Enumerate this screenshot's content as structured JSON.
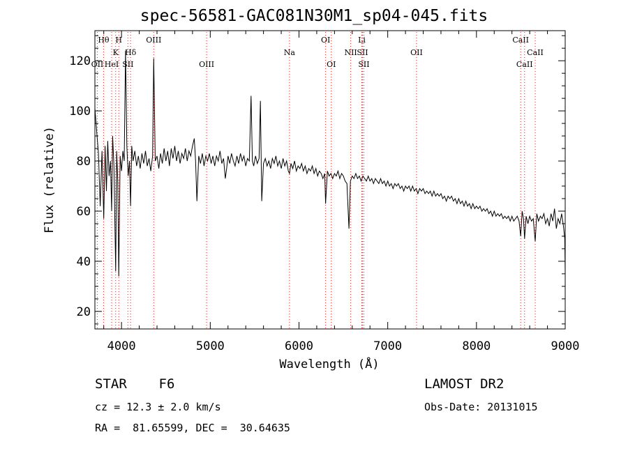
{
  "title": "spec-56581-GAC081N30M1_sp04-045.fits",
  "info": {
    "object": "STAR    F6",
    "survey": "LAMOST DR2",
    "redshift": "cz = 12.3 ± 2.0 km/s",
    "obs_date": "Obs-Date: 20131015",
    "coords": "RA =  81.65599, DEC =  30.64635"
  },
  "chart_data": {
    "type": "line",
    "title": "spec-56581-GAC081N30M1_sp04-045.fits",
    "xlabel": "Wavelength (Å)",
    "ylabel": "Flux (relative)",
    "xlim": [
      3700,
      9000
    ],
    "ylim": [
      13,
      132
    ],
    "xticks": [
      4000,
      5000,
      6000,
      7000,
      8000,
      9000
    ],
    "yticks": [
      20,
      40,
      60,
      80,
      100,
      120
    ],
    "grid": false,
    "line_color": "#000000",
    "marker_color": "#cc2222",
    "lines": [
      {
        "label": "OII",
        "wave": 3727,
        "row": 2
      },
      {
        "label": "Hθ",
        "wave": 3798,
        "row": 0
      },
      {
        "label": "K",
        "wave": 3934,
        "row": 1
      },
      {
        "label": "H",
        "wave": 3969,
        "row": 0
      },
      {
        "label": "HeI",
        "wave": 3889,
        "row": 2
      },
      {
        "label": "SII",
        "wave": 4072,
        "row": 2
      },
      {
        "label": "Hδ",
        "wave": 4102,
        "row": 1
      },
      {
        "label": "OIII",
        "wave": 4363,
        "row": 0
      },
      {
        "label": "OIII",
        "wave": 4959,
        "row": 2
      },
      {
        "label": "Na",
        "wave": 5893,
        "row": 1
      },
      {
        "label": "OI",
        "wave": 6300,
        "row": 0
      },
      {
        "label": "OI",
        "wave": 6364,
        "row": 2
      },
      {
        "label": "NII",
        "wave": 6583,
        "row": 1
      },
      {
        "label": "Li",
        "wave": 6708,
        "row": 0
      },
      {
        "label": "SII",
        "wave": 6716,
        "row": 1
      },
      {
        "label": "SII",
        "wave": 6731,
        "row": 2
      },
      {
        "label": "OII",
        "wave": 7325,
        "row": 1
      },
      {
        "label": "CaII",
        "wave": 8498,
        "row": 0
      },
      {
        "label": "CaII",
        "wave": 8542,
        "row": 2
      },
      {
        "label": "CaII",
        "wave": 8662,
        "row": 1
      }
    ],
    "series": [
      {
        "points": [
          [
            3700,
            101
          ],
          [
            3720,
            92
          ],
          [
            3740,
            83
          ],
          [
            3760,
            62
          ],
          [
            3780,
            84
          ],
          [
            3800,
            57
          ],
          [
            3815,
            86
          ],
          [
            3830,
            68
          ],
          [
            3845,
            88
          ],
          [
            3860,
            74
          ],
          [
            3875,
            80
          ],
          [
            3889,
            60
          ],
          [
            3900,
            90
          ],
          [
            3915,
            78
          ],
          [
            3934,
            36
          ],
          [
            3945,
            84
          ],
          [
            3958,
            72
          ],
          [
            3969,
            34
          ],
          [
            3985,
            82
          ],
          [
            4000,
            76
          ],
          [
            4015,
            84
          ],
          [
            4030,
            80
          ],
          [
            4045,
            124
          ],
          [
            4060,
            86
          ],
          [
            4075,
            74
          ],
          [
            4090,
            80
          ],
          [
            4102,
            62
          ],
          [
            4115,
            86
          ],
          [
            4130,
            80
          ],
          [
            4150,
            84
          ],
          [
            4170,
            78
          ],
          [
            4190,
            82
          ],
          [
            4210,
            77
          ],
          [
            4230,
            83
          ],
          [
            4250,
            79
          ],
          [
            4270,
            84
          ],
          [
            4290,
            78
          ],
          [
            4310,
            81
          ],
          [
            4330,
            76
          ],
          [
            4350,
            82
          ],
          [
            4363,
            121
          ],
          [
            4380,
            80
          ],
          [
            4400,
            82
          ],
          [
            4420,
            77
          ],
          [
            4440,
            83
          ],
          [
            4460,
            79
          ],
          [
            4480,
            85
          ],
          [
            4500,
            80
          ],
          [
            4520,
            84
          ],
          [
            4540,
            78
          ],
          [
            4560,
            85
          ],
          [
            4580,
            81
          ],
          [
            4600,
            86
          ],
          [
            4620,
            80
          ],
          [
            4640,
            84
          ],
          [
            4660,
            79
          ],
          [
            4680,
            83
          ],
          [
            4700,
            81
          ],
          [
            4720,
            85
          ],
          [
            4740,
            80
          ],
          [
            4760,
            84
          ],
          [
            4780,
            82
          ],
          [
            4800,
            86
          ],
          [
            4820,
            89
          ],
          [
            4835,
            80
          ],
          [
            4850,
            64
          ],
          [
            4870,
            82
          ],
          [
            4890,
            79
          ],
          [
            4910,
            83
          ],
          [
            4930,
            78
          ],
          [
            4950,
            82
          ],
          [
            4970,
            80
          ],
          [
            4990,
            83
          ],
          [
            5010,
            79
          ],
          [
            5030,
            82
          ],
          [
            5050,
            78
          ],
          [
            5070,
            82
          ],
          [
            5090,
            80
          ],
          [
            5110,
            84
          ],
          [
            5130,
            79
          ],
          [
            5150,
            81
          ],
          [
            5170,
            73
          ],
          [
            5185,
            77
          ],
          [
            5200,
            82
          ],
          [
            5220,
            79
          ],
          [
            5240,
            83
          ],
          [
            5260,
            80
          ],
          [
            5280,
            78
          ],
          [
            5300,
            82
          ],
          [
            5320,
            79
          ],
          [
            5340,
            83
          ],
          [
            5360,
            80
          ],
          [
            5380,
            82
          ],
          [
            5400,
            78
          ],
          [
            5420,
            81
          ],
          [
            5440,
            80
          ],
          [
            5460,
            106
          ],
          [
            5475,
            80
          ],
          [
            5490,
            78
          ],
          [
            5510,
            82
          ],
          [
            5530,
            79
          ],
          [
            5550,
            81
          ],
          [
            5565,
            104
          ],
          [
            5580,
            64
          ],
          [
            5600,
            79
          ],
          [
            5620,
            81
          ],
          [
            5640,
            78
          ],
          [
            5660,
            80
          ],
          [
            5680,
            77
          ],
          [
            5700,
            81
          ],
          [
            5720,
            79
          ],
          [
            5740,
            82
          ],
          [
            5760,
            78
          ],
          [
            5780,
            80
          ],
          [
            5800,
            77
          ],
          [
            5820,
            81
          ],
          [
            5840,
            78
          ],
          [
            5860,
            80
          ],
          [
            5880,
            76
          ],
          [
            5893,
            75
          ],
          [
            5910,
            79
          ],
          [
            5930,
            77
          ],
          [
            5950,
            80
          ],
          [
            5970,
            76
          ],
          [
            5990,
            78
          ],
          [
            6010,
            77
          ],
          [
            6030,
            79
          ],
          [
            6050,
            76
          ],
          [
            6070,
            78
          ],
          [
            6090,
            75
          ],
          [
            6110,
            77
          ],
          [
            6130,
            76
          ],
          [
            6150,
            78
          ],
          [
            6170,
            75
          ],
          [
            6190,
            77
          ],
          [
            6210,
            74
          ],
          [
            6230,
            76
          ],
          [
            6250,
            75
          ],
          [
            6270,
            73
          ],
          [
            6290,
            75
          ],
          [
            6300,
            63
          ],
          [
            6320,
            76
          ],
          [
            6340,
            74
          ],
          [
            6360,
            75
          ],
          [
            6380,
            73
          ],
          [
            6400,
            75
          ],
          [
            6420,
            74
          ],
          [
            6440,
            76
          ],
          [
            6460,
            73
          ],
          [
            6480,
            75
          ],
          [
            6500,
            74
          ],
          [
            6520,
            72
          ],
          [
            6540,
            71
          ],
          [
            6563,
            53
          ],
          [
            6580,
            72
          ],
          [
            6600,
            74
          ],
          [
            6620,
            73
          ],
          [
            6640,
            75
          ],
          [
            6660,
            73
          ],
          [
            6680,
            74
          ],
          [
            6700,
            72
          ],
          [
            6720,
            74
          ],
          [
            6740,
            73
          ],
          [
            6760,
            72
          ],
          [
            6780,
            74
          ],
          [
            6800,
            72
          ],
          [
            6820,
            73
          ],
          [
            6840,
            71
          ],
          [
            6860,
            73
          ],
          [
            6880,
            72
          ],
          [
            6900,
            71
          ],
          [
            6920,
            73
          ],
          [
            6940,
            71
          ],
          [
            6960,
            72
          ],
          [
            6980,
            70
          ],
          [
            7000,
            72
          ],
          [
            7020,
            70
          ],
          [
            7040,
            71
          ],
          [
            7060,
            69
          ],
          [
            7080,
            71
          ],
          [
            7100,
            70
          ],
          [
            7120,
            71
          ],
          [
            7140,
            69
          ],
          [
            7160,
            70
          ],
          [
            7180,
            68
          ],
          [
            7200,
            70
          ],
          [
            7220,
            69
          ],
          [
            7240,
            70
          ],
          [
            7260,
            68
          ],
          [
            7280,
            70
          ],
          [
            7300,
            68
          ],
          [
            7320,
            69
          ],
          [
            7340,
            67
          ],
          [
            7360,
            69
          ],
          [
            7380,
            68
          ],
          [
            7400,
            69
          ],
          [
            7420,
            67
          ],
          [
            7440,
            68
          ],
          [
            7460,
            67
          ],
          [
            7480,
            68
          ],
          [
            7500,
            66
          ],
          [
            7520,
            68
          ],
          [
            7540,
            66
          ],
          [
            7560,
            67
          ],
          [
            7580,
            66
          ],
          [
            7600,
            67
          ],
          [
            7620,
            65
          ],
          [
            7640,
            66
          ],
          [
            7660,
            64
          ],
          [
            7680,
            66
          ],
          [
            7700,
            65
          ],
          [
            7720,
            66
          ],
          [
            7740,
            64
          ],
          [
            7760,
            65
          ],
          [
            7780,
            63
          ],
          [
            7800,
            65
          ],
          [
            7820,
            63
          ],
          [
            7840,
            64
          ],
          [
            7860,
            62
          ],
          [
            7880,
            64
          ],
          [
            7900,
            62
          ],
          [
            7920,
            63
          ],
          [
            7940,
            61
          ],
          [
            7960,
            63
          ],
          [
            7980,
            61
          ],
          [
            8000,
            62
          ],
          [
            8020,
            61
          ],
          [
            8040,
            62
          ],
          [
            8060,
            60
          ],
          [
            8080,
            61
          ],
          [
            8100,
            60
          ],
          [
            8120,
            61
          ],
          [
            8140,
            59
          ],
          [
            8160,
            60
          ],
          [
            8180,
            58
          ],
          [
            8200,
            60
          ],
          [
            8220,
            58
          ],
          [
            8240,
            59
          ],
          [
            8260,
            58
          ],
          [
            8280,
            59
          ],
          [
            8300,
            57
          ],
          [
            8320,
            58
          ],
          [
            8340,
            57
          ],
          [
            8360,
            58
          ],
          [
            8380,
            56
          ],
          [
            8400,
            58
          ],
          [
            8420,
            56
          ],
          [
            8440,
            57
          ],
          [
            8460,
            58
          ],
          [
            8480,
            56
          ],
          [
            8498,
            50
          ],
          [
            8515,
            60
          ],
          [
            8530,
            57
          ],
          [
            8542,
            49
          ],
          [
            8560,
            58
          ],
          [
            8580,
            55
          ],
          [
            8600,
            58
          ],
          [
            8620,
            56
          ],
          [
            8640,
            57
          ],
          [
            8662,
            48
          ],
          [
            8680,
            59
          ],
          [
            8700,
            56
          ],
          [
            8720,
            58
          ],
          [
            8740,
            57
          ],
          [
            8760,
            59
          ],
          [
            8780,
            55
          ],
          [
            8800,
            57
          ],
          [
            8820,
            54
          ],
          [
            8840,
            59
          ],
          [
            8860,
            56
          ],
          [
            8880,
            61
          ],
          [
            8900,
            53
          ],
          [
            8920,
            57
          ],
          [
            8940,
            55
          ],
          [
            8960,
            59
          ],
          [
            8980,
            54
          ],
          [
            8995,
            49
          ],
          [
            9000,
            35
          ]
        ]
      }
    ]
  }
}
